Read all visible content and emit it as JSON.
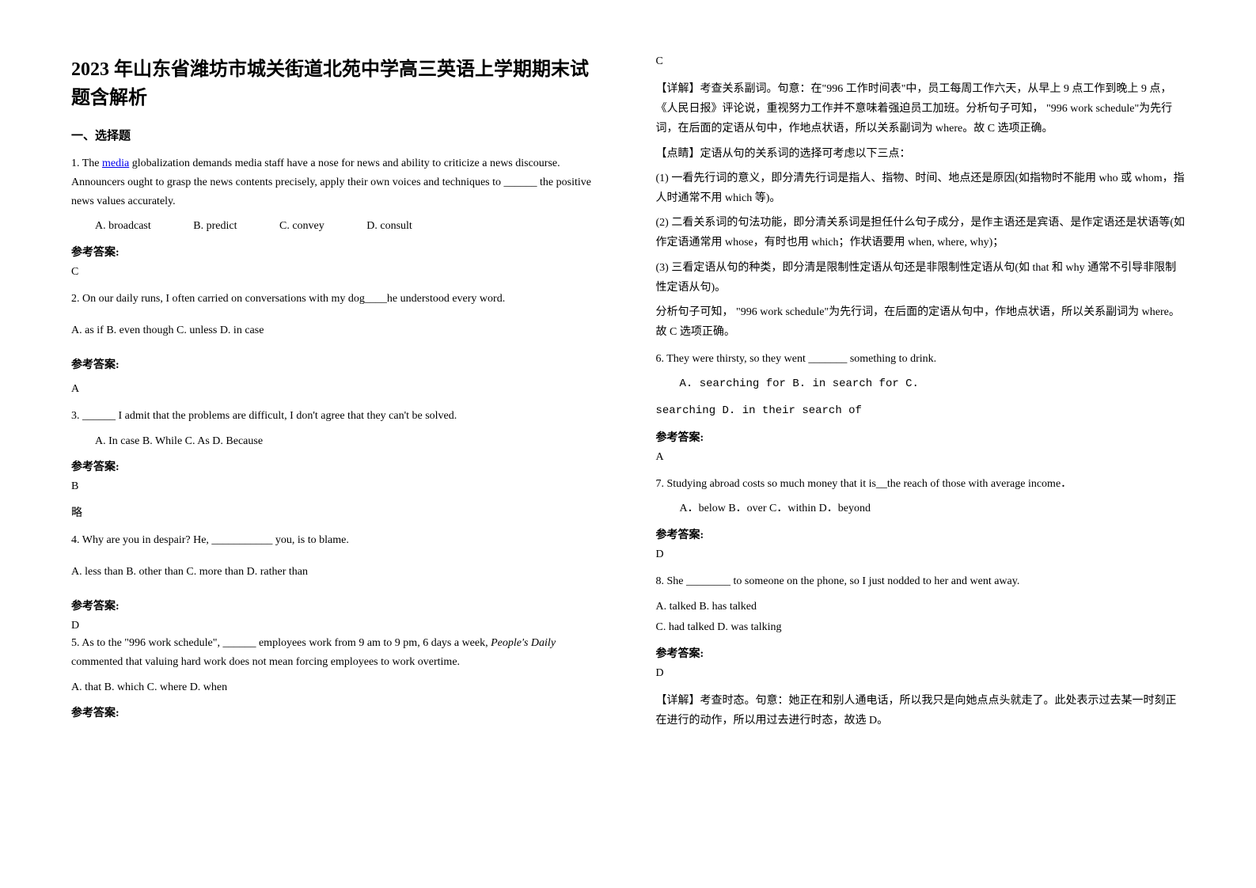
{
  "title": "2023 年山东省潍坊市城关街道北苑中学高三英语上学期期末试题含解析",
  "section1": "一、选择题",
  "q1": {
    "text": "1. The <span class=\"link\">media</span> globalization demands media staff have a nose for news and ability to criticize a news discourse. Announcers ought to grasp the news contents precisely, apply their own voices and techniques to ______ the positive news values accurately.",
    "optA": "A. broadcast",
    "optB": "B. predict",
    "optC": "C. convey",
    "optD": "D. consult",
    "answerLabel": "参考答案:",
    "answer": "C"
  },
  "q2": {
    "text": "2. On our daily runs, I often carried on conversations with my dog____he understood every word.",
    "options": "A. as if   B. even though   C. unless   D. in case",
    "answerLabel": "参考答案:",
    "answer": "A"
  },
  "q3": {
    "text": "3. ______ I admit that the problems are difficult, I don't agree that they can't be solved.",
    "options": "A. In case        B. While        C. As     D. Because",
    "answerLabel": "参考答案:",
    "answer": "B",
    "note": "略"
  },
  "q4": {
    "text": "4. Why are you in despair? He, ___________ you, is to blame.",
    "options": " A. less than       B. other than     C. more than         D. rather than",
    "answerLabel": "参考答案:",
    "answer": "D"
  },
  "q5": {
    "text": "5. As to the \"996 work schedule\", ______ employees work from 9 am to 9 pm, 6 days a week, <span class=\"italic\">People's Daily</span> commented that valuing hard work does not mean forcing employees to work overtime.",
    "options": "A. that   B. which        C. where        D. when",
    "answerLabel": "参考答案:",
    "answer": "C",
    "exp1": "【详解】考查关系副词。句意：在\"996 工作时间表\"中，员工每周工作六天，从早上 9 点工作到晚上 9 点，《人民日报》评论说，重视努力工作并不意味着强迫员工加班。分析句子可知， \"996 work schedule\"为先行词，在后面的定语从句中，作地点状语，所以关系副词为 where。故 C 选项正确。",
    "exp2": "【点睛】定语从句的关系词的选择可考虑以下三点：",
    "exp3": "(1) 一看先行词的意义，即分清先行词是指人、指物、时间、地点还是原因(如指物时不能用 who 或 whom，指人时通常不用 which 等)。",
    "exp4": "(2) 二看关系词的句法功能，即分清关系词是担任什么句子成分，是作主语还是宾语、是作定语还是状语等(如作定语通常用 whose，有时也用 which；作状语要用 when, where, why)；",
    "exp5": "(3) 三看定语从句的种类，即分清是限制性定语从句还是非限制性定语从句(如 that 和 why 通常不引导非限制性定语从句)。",
    "exp6": "分析句子可知， \"996 work schedule\"为先行词，在后面的定语从句中，作地点状语，所以关系副词为 where。故 C 选项正确。"
  },
  "q6": {
    "text": "6. They were thirsty, so they went _______ something to drink.",
    "optLine1": "A. searching for          B. in search for                       C.",
    "optLine2": "searching             D. in their search of",
    "answerLabel": "参考答案:",
    "answer": "A"
  },
  "q7": {
    "text": "     7. Studying abroad costs so much money that it is__the reach of those with average income．",
    "options": "A．below    B．over    C．within    D．beyond",
    "answerLabel": "参考答案:",
    "answer": "D"
  },
  "q8": {
    "text": "8. She ________ to someone on the phone, so I just nodded to her and went away.",
    "optLine1": "A. talked       B. has talked",
    "optLine2": "C. had talked    D. was talking",
    "answerLabel": "参考答案:",
    "answer": "D",
    "exp": "【详解】考查时态。句意：她正在和别人通电话，所以我只是向她点点头就走了。此处表示过去某一时刻正在进行的动作，所以用过去进行时态，故选 D。"
  }
}
